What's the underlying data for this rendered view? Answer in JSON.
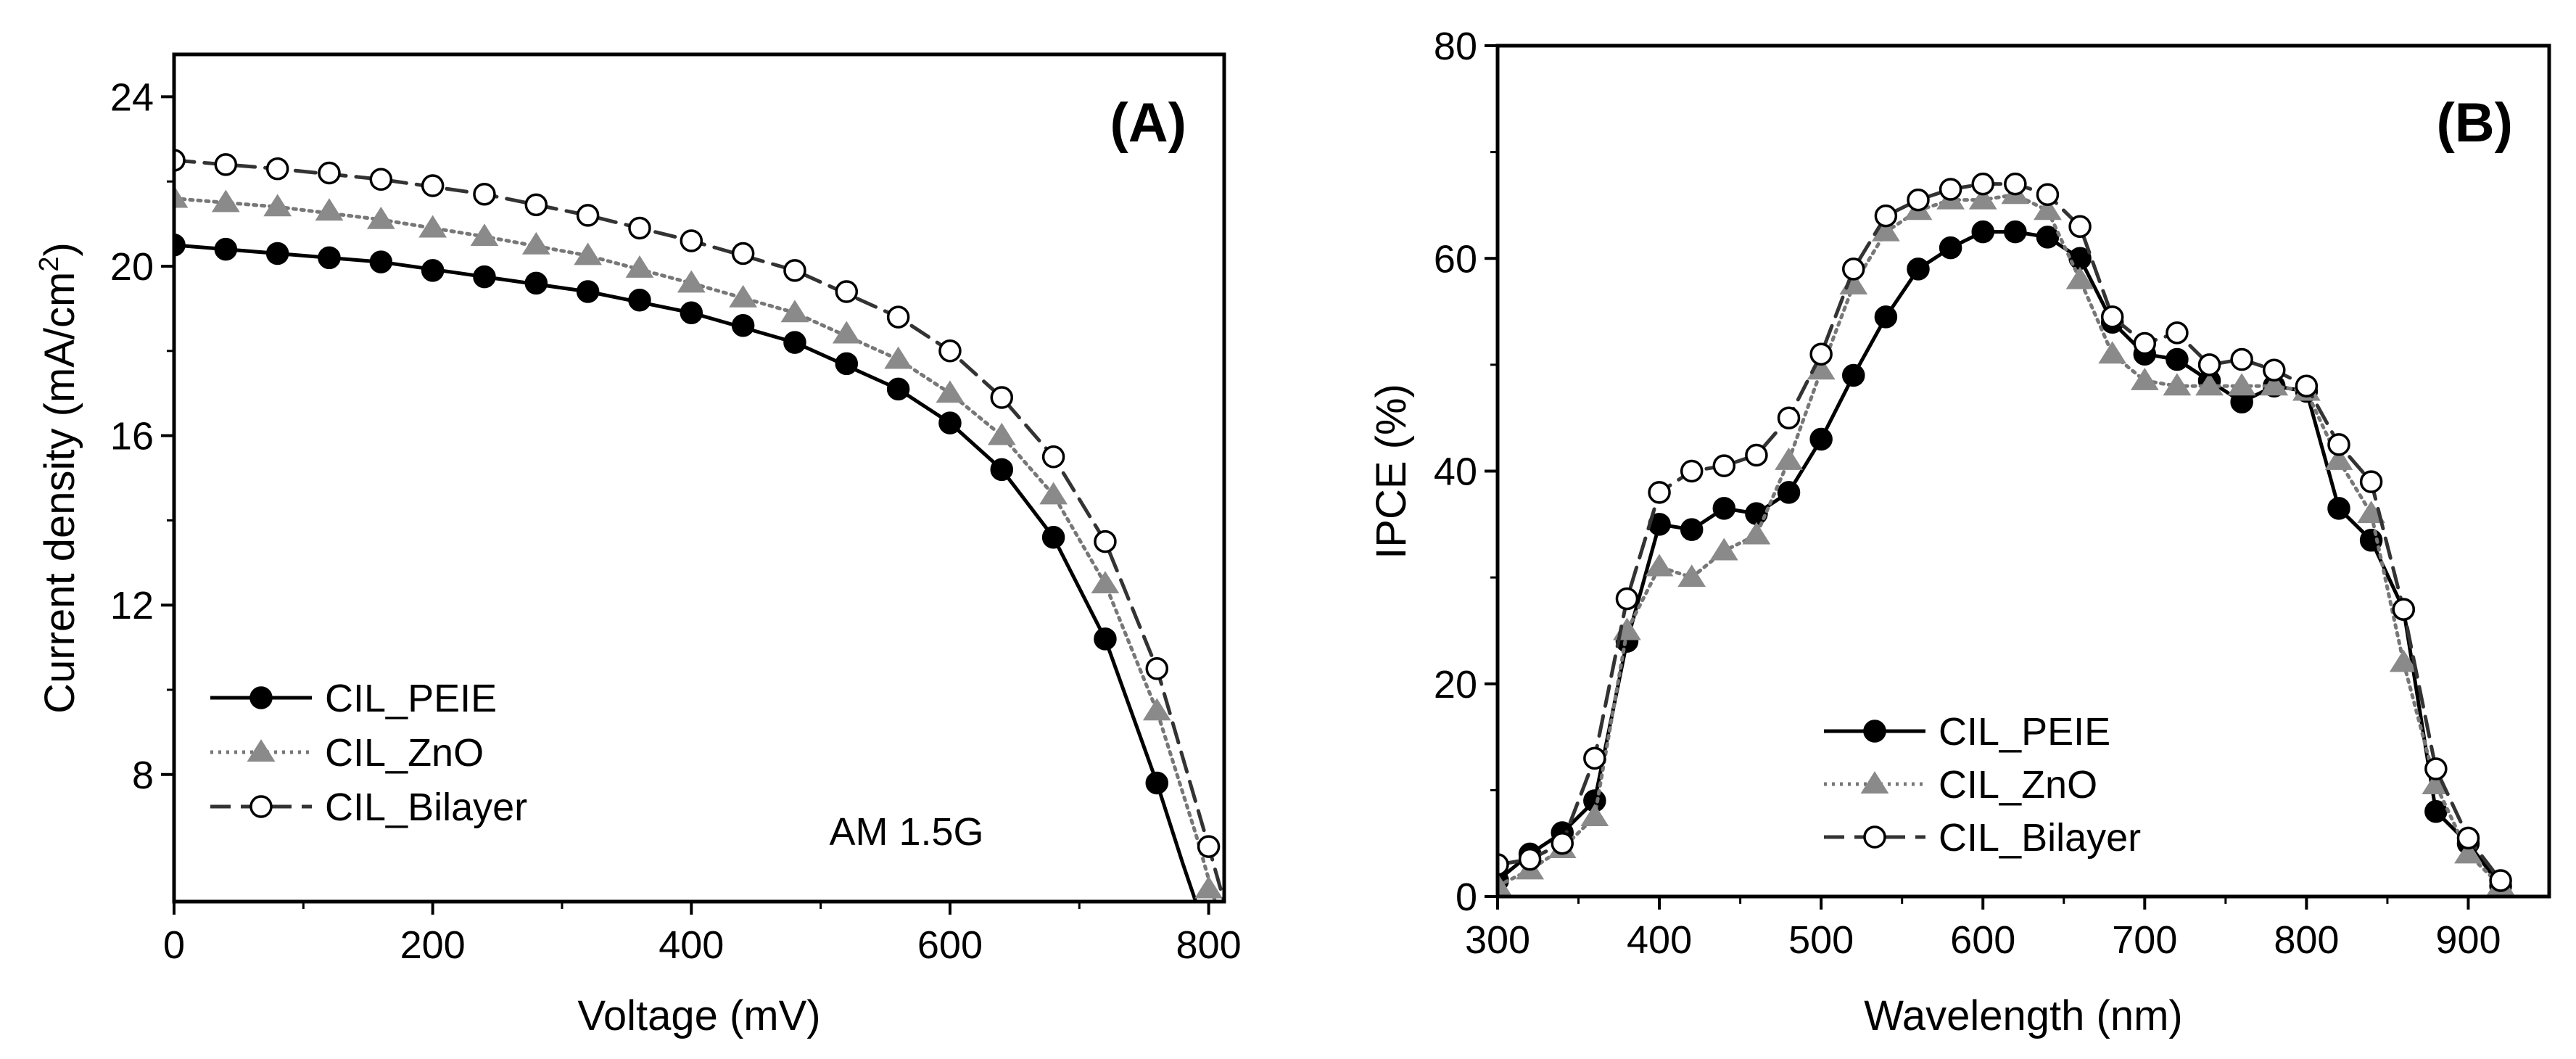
{
  "chart_data": [
    {
      "type": "line",
      "panel_label": "(A)",
      "xlabel": "Voltage (mV)",
      "ylabel_main": "Current density (mA/cm",
      "ylabel_sup": "2",
      "ylabel_end": ")",
      "xlim": [
        0,
        812
      ],
      "ylim": [
        5.0,
        25.0
      ],
      "xticks": [
        0,
        200,
        400,
        600,
        800
      ],
      "yticks": [
        8,
        12,
        16,
        20,
        24
      ],
      "annotation": "AM 1.5G",
      "legend_position": "bottom-left",
      "series": [
        {
          "name": "CIL_PEIE",
          "line": "solid",
          "marker": "filled-circle",
          "x": [
            0,
            40,
            80,
            120,
            160,
            200,
            240,
            280,
            320,
            360,
            400,
            440,
            480,
            520,
            560,
            600,
            640,
            680,
            720,
            760
          ],
          "y": [
            20.5,
            20.4,
            20.3,
            20.2,
            20.1,
            19.9,
            19.75,
            19.6,
            19.4,
            19.2,
            18.9,
            18.6,
            18.2,
            17.7,
            17.1,
            16.3,
            15.2,
            13.6,
            11.2,
            7.8
          ],
          "curve_x": [
            0,
            80,
            160,
            240,
            320,
            400,
            480,
            560,
            600,
            640,
            680,
            720,
            760,
            780,
            790
          ],
          "curve_y": [
            20.5,
            20.3,
            20.1,
            19.75,
            19.4,
            18.9,
            18.2,
            17.1,
            16.3,
            15.2,
            13.6,
            11.2,
            7.8,
            5.9,
            5.0
          ]
        },
        {
          "name": "CIL_ZnO",
          "line": "dotted",
          "marker": "filled-triangle",
          "x": [
            0,
            40,
            80,
            120,
            160,
            200,
            240,
            280,
            320,
            360,
            400,
            440,
            480,
            520,
            560,
            600,
            640,
            680,
            720,
            760,
            800
          ],
          "y": [
            21.6,
            21.5,
            21.4,
            21.3,
            21.1,
            20.9,
            20.7,
            20.5,
            20.25,
            19.95,
            19.6,
            19.25,
            18.9,
            18.4,
            17.8,
            17.0,
            16.0,
            14.6,
            12.5,
            9.5,
            5.3
          ],
          "curve_x": [
            0,
            80,
            160,
            240,
            320,
            400,
            480,
            560,
            600,
            640,
            680,
            720,
            760,
            790,
            805
          ],
          "curve_y": [
            21.6,
            21.4,
            21.1,
            20.7,
            20.25,
            19.6,
            18.9,
            17.8,
            17.0,
            16.0,
            14.6,
            12.5,
            9.5,
            6.6,
            5.0
          ]
        },
        {
          "name": "CIL_Bilayer",
          "line": "dashed",
          "marker": "open-circle",
          "x": [
            0,
            40,
            80,
            120,
            160,
            200,
            240,
            280,
            320,
            360,
            400,
            440,
            480,
            520,
            560,
            600,
            640,
            680,
            720,
            760,
            800
          ],
          "y": [
            22.5,
            22.4,
            22.3,
            22.2,
            22.05,
            21.9,
            21.7,
            21.45,
            21.2,
            20.9,
            20.6,
            20.3,
            19.9,
            19.4,
            18.8,
            18.0,
            16.9,
            15.5,
            13.5,
            10.5,
            6.3
          ],
          "curve_x": [
            0,
            80,
            160,
            240,
            320,
            400,
            480,
            560,
            600,
            640,
            680,
            720,
            760,
            800,
            812
          ],
          "curve_y": [
            22.5,
            22.3,
            22.05,
            21.7,
            21.2,
            20.6,
            19.9,
            18.8,
            18.0,
            16.9,
            15.5,
            13.5,
            10.5,
            6.3,
            5.0
          ]
        }
      ]
    },
    {
      "type": "line",
      "panel_label": "(B)",
      "xlabel": "Wavelength (nm)",
      "ylabel": "IPCE (%)",
      "xlim": [
        300,
        950
      ],
      "ylim": [
        0,
        80
      ],
      "xticks": [
        300,
        400,
        500,
        600,
        700,
        800,
        900
      ],
      "yticks": [
        0,
        20,
        40,
        60,
        80
      ],
      "legend_position": "bottom-center",
      "series": [
        {
          "name": "CIL_PEIE",
          "line": "solid",
          "marker": "filled-circle",
          "x": [
            300,
            320,
            340,
            360,
            380,
            400,
            420,
            440,
            460,
            480,
            500,
            520,
            540,
            560,
            580,
            600,
            620,
            640,
            660,
            680,
            700,
            720,
            740,
            760,
            780,
            800,
            820,
            840,
            860,
            880,
            900,
            920
          ],
          "y": [
            1.5,
            4.0,
            6.0,
            9.0,
            24.0,
            35.0,
            34.5,
            36.5,
            36.0,
            38.0,
            43.0,
            49.0,
            54.5,
            59.0,
            61.0,
            62.5,
            62.5,
            62.0,
            60.0,
            54.0,
            51.0,
            50.5,
            48.5,
            46.5,
            48.0,
            47.5,
            36.5,
            33.5,
            27.0,
            8.0,
            5.0,
            1.0
          ]
        },
        {
          "name": "CIL_ZnO",
          "line": "dotted",
          "marker": "filled-triangle",
          "x": [
            300,
            320,
            340,
            360,
            380,
            400,
            420,
            440,
            460,
            480,
            500,
            520,
            540,
            560,
            580,
            600,
            620,
            640,
            660,
            680,
            700,
            720,
            740,
            760,
            780,
            800,
            820,
            840,
            860,
            880,
            900,
            920
          ],
          "y": [
            1.0,
            2.5,
            4.5,
            7.5,
            25.0,
            31.0,
            30.0,
            32.5,
            34.0,
            41.0,
            49.5,
            57.5,
            62.5,
            64.5,
            65.5,
            65.5,
            66.0,
            64.5,
            58.0,
            51.0,
            48.5,
            48.0,
            48.0,
            48.0,
            48.0,
            47.5,
            41.0,
            36.0,
            22.0,
            10.5,
            4.0,
            1.0
          ]
        },
        {
          "name": "CIL_Bilayer",
          "line": "dashed",
          "marker": "open-circle",
          "x": [
            300,
            320,
            340,
            360,
            380,
            400,
            420,
            440,
            460,
            480,
            500,
            520,
            540,
            560,
            580,
            600,
            620,
            640,
            660,
            680,
            700,
            720,
            740,
            760,
            780,
            800,
            820,
            840,
            860,
            880,
            900,
            920
          ],
          "y": [
            3.0,
            3.5,
            5.0,
            13.0,
            28.0,
            38.0,
            40.0,
            40.5,
            41.5,
            45.0,
            51.0,
            59.0,
            64.0,
            65.5,
            66.5,
            67.0,
            67.0,
            66.0,
            63.0,
            54.5,
            52.0,
            53.0,
            50.0,
            50.5,
            49.5,
            48.0,
            42.5,
            39.0,
            27.0,
            12.0,
            5.5,
            1.5
          ]
        }
      ]
    }
  ]
}
